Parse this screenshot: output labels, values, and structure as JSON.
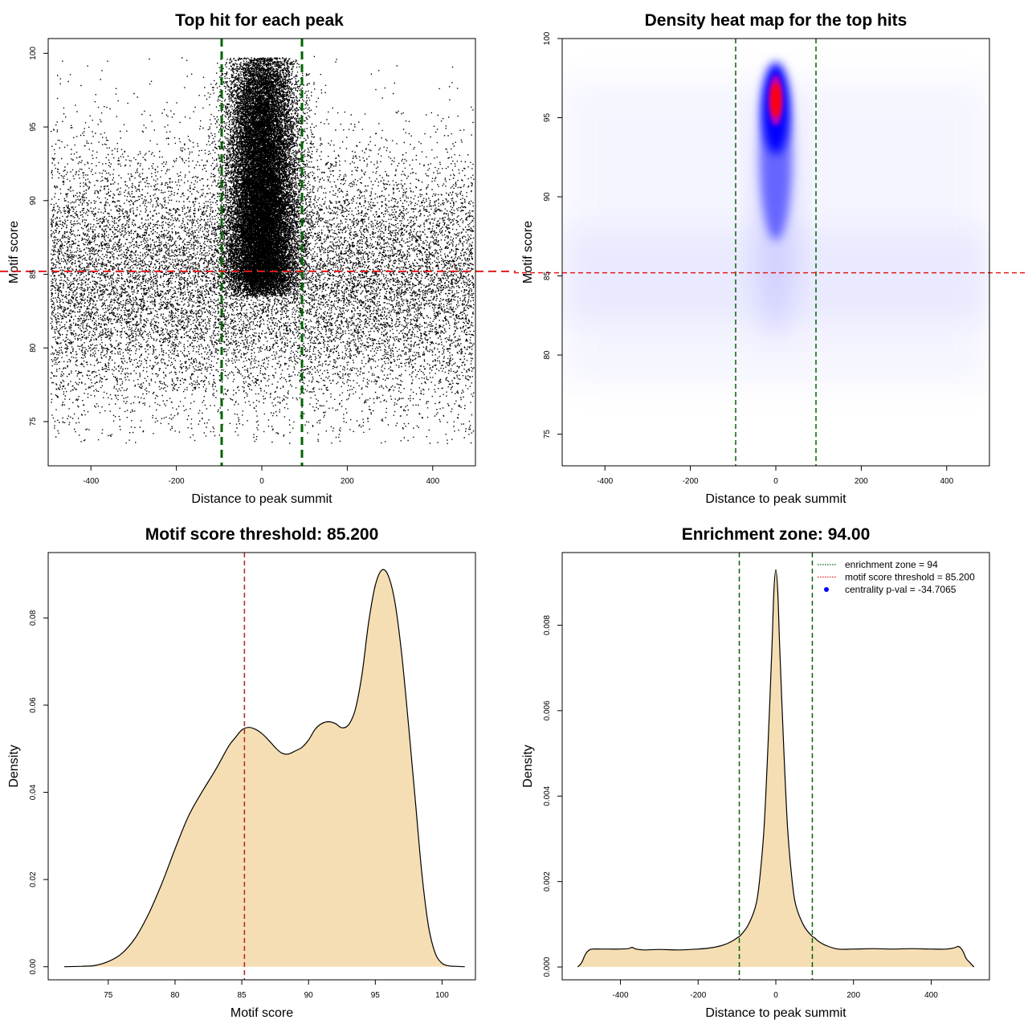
{
  "chart_data": [
    {
      "id": "scatter",
      "type": "scatter",
      "title": "Top hit for each peak",
      "xlabel": "Distance to peak summit",
      "ylabel": "Motif score",
      "xlim": [
        -500,
        500
      ],
      "ylim": [
        72,
        101
      ],
      "xticks": [
        -400,
        -200,
        0,
        200,
        400
      ],
      "yticks": [
        75,
        80,
        85,
        90,
        95,
        100
      ],
      "hlines": [
        {
          "y": 85.2,
          "color": "#e31a1c",
          "style": "dashed"
        }
      ],
      "vlines": [
        {
          "x": -94,
          "color": "#006400",
          "style": "dashed"
        },
        {
          "x": 94,
          "color": "#006400",
          "style": "dashed"
        }
      ],
      "point_color": "#000000",
      "background": {
        "distribution": "uniform",
        "x_range": [
          -500,
          500
        ],
        "y_peak": 84.5,
        "y_sd": 4.5,
        "relative_density": 0.35
      },
      "central_cluster": {
        "x_center": 0,
        "x_sd": 40,
        "y_peak": 95,
        "y_range": [
          84,
          100
        ],
        "relative_density": 0.65
      }
    },
    {
      "id": "heatmap",
      "type": "heatmap",
      "title": "Density heat map for the top hits",
      "xlabel": "Distance to peak summit",
      "ylabel": "Motif score",
      "xlim": [
        -500,
        500
      ],
      "ylim": [
        73,
        100
      ],
      "xticks": [
        -400,
        -200,
        0,
        200,
        400
      ],
      "yticks": [
        75,
        80,
        85,
        90,
        95,
        100
      ],
      "hlines": [
        {
          "y": 85.2,
          "color": "#e31a1c",
          "style": "dashed"
        }
      ],
      "vlines": [
        {
          "x": -94,
          "color": "#006400",
          "style": "dashed"
        },
        {
          "x": 94,
          "color": "#006400",
          "style": "dashed"
        }
      ],
      "colorscale": [
        "#ffffff",
        "#0000ff",
        "#ff0000"
      ],
      "hotspot": {
        "x": 0,
        "y": 96.1
      }
    },
    {
      "id": "score-density",
      "type": "area",
      "title": "Motif score threshold: 85.200",
      "xlabel": "Motif score",
      "ylabel": "Density",
      "xlim": [
        70.5,
        102.5
      ],
      "ylim": [
        -0.003,
        0.095
      ],
      "xticks": [
        75,
        80,
        85,
        90,
        95,
        100
      ],
      "yticks": [
        0.0,
        0.02,
        0.04,
        0.06,
        0.08
      ],
      "ytick_labels": [
        "0.00",
        "0.02",
        "0.04",
        "0.06",
        "0.08"
      ],
      "fill": "#f5deb3",
      "vlines": [
        {
          "x": 85.2,
          "color": "#b22222",
          "style": "dashed"
        }
      ],
      "x": [
        71.7,
        73,
        74,
        75,
        76,
        77,
        78,
        79,
        80,
        81,
        82,
        83,
        84,
        84.5,
        85,
        85.5,
        86,
        86.5,
        87,
        87.5,
        88,
        88.5,
        89,
        89.5,
        90,
        90.5,
        91,
        91.5,
        92,
        92.5,
        93,
        93.5,
        94,
        94.5,
        95,
        95.5,
        96,
        96.5,
        97,
        97.5,
        98,
        98.5,
        99,
        99.5,
        100,
        100.5,
        101,
        101.7
      ],
      "y": [
        0.0,
        0.0001,
        0.0003,
        0.0012,
        0.003,
        0.0065,
        0.012,
        0.019,
        0.027,
        0.0345,
        0.04,
        0.045,
        0.0505,
        0.0525,
        0.0543,
        0.0549,
        0.0545,
        0.0535,
        0.052,
        0.0503,
        0.049,
        0.0488,
        0.0495,
        0.0503,
        0.052,
        0.0545,
        0.0558,
        0.0562,
        0.0558,
        0.0548,
        0.0555,
        0.059,
        0.067,
        0.079,
        0.0875,
        0.091,
        0.0895,
        0.083,
        0.071,
        0.055,
        0.038,
        0.021,
        0.009,
        0.003,
        0.0008,
        0.0002,
        0.0001,
        0.0
      ]
    },
    {
      "id": "distance-density",
      "type": "area",
      "title": "Enrichment zone: 94.00",
      "xlabel": "Distance to peak summit",
      "ylabel": "Density",
      "xlim": [
        -550,
        550
      ],
      "ylim": [
        -0.0003,
        0.0097
      ],
      "xticks": [
        -400,
        -200,
        0,
        200,
        400
      ],
      "yticks": [
        0.0,
        0.002,
        0.004,
        0.006,
        0.008
      ],
      "ytick_labels": [
        "0.000",
        "0.002",
        "0.004",
        "0.006",
        "0.008"
      ],
      "fill": "#f5deb3",
      "vlines": [
        {
          "x": -94,
          "color": "#006400",
          "style": "dashed"
        },
        {
          "x": 94,
          "color": "#006400",
          "style": "dashed"
        }
      ],
      "x": [
        -510,
        -500,
        -490,
        -480,
        -470,
        -450,
        -430,
        -400,
        -380,
        -370,
        -360,
        -340,
        -300,
        -250,
        -200,
        -160,
        -130,
        -110,
        -100,
        -90,
        -70,
        -50,
        -40,
        -30,
        -20,
        -10,
        -5,
        0,
        5,
        10,
        20,
        30,
        40,
        50,
        70,
        90,
        100,
        110,
        130,
        160,
        200,
        250,
        300,
        350,
        400,
        440,
        460,
        470,
        480,
        490,
        500,
        510
      ],
      "y": [
        0.0,
        0.0001,
        0.0003,
        0.0004,
        0.00042,
        0.00042,
        0.00042,
        0.00042,
        0.00043,
        0.00046,
        0.00042,
        0.0004,
        0.00041,
        0.0004,
        0.00042,
        0.00046,
        0.00053,
        0.00062,
        0.00068,
        0.00075,
        0.001,
        0.0015,
        0.0022,
        0.0033,
        0.0052,
        0.0075,
        0.0088,
        0.0093,
        0.0088,
        0.0075,
        0.0052,
        0.0033,
        0.0022,
        0.0015,
        0.001,
        0.00075,
        0.00068,
        0.0006,
        0.0005,
        0.00042,
        0.00042,
        0.00043,
        0.00042,
        0.00043,
        0.00042,
        0.00042,
        0.00045,
        0.00048,
        0.0004,
        0.0002,
        0.0001,
        0.0
      ],
      "legend": {
        "position": "top-right",
        "items": [
          {
            "label": "enrichment zone = 94",
            "color": "#006400",
            "kind": "dotted-line"
          },
          {
            "label": "motif score threshold = 85.200",
            "color": "#e31a1c",
            "kind": "dotted-line"
          },
          {
            "label": "centrality p-val = -34.7065",
            "color": "#0000ff",
            "kind": "point"
          }
        ]
      }
    }
  ]
}
